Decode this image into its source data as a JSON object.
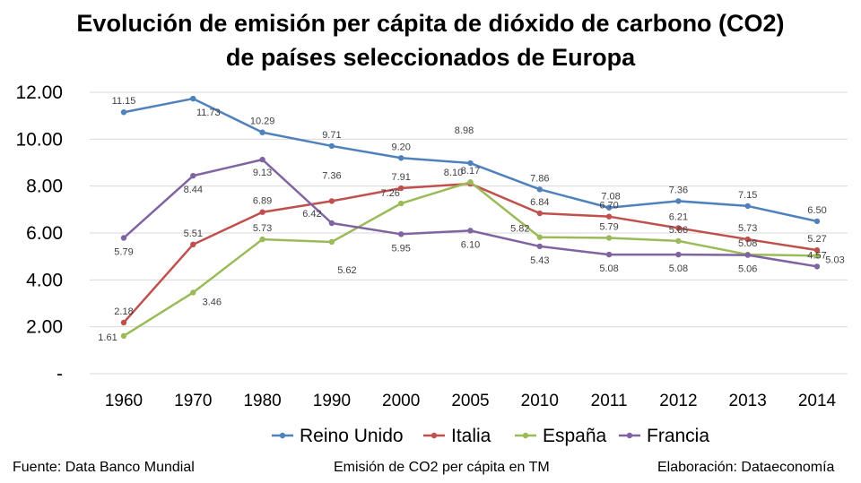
{
  "title_line1": "Evolución de emisión per cápita de dióxido de carbono (CO2)",
  "title_line2": "de países seleccionados de Europa",
  "footer": {
    "source": "Fuente: Data Banco Mundial",
    "unit": "Emisión de CO2 per cápita en TM",
    "credit": "Elaboración: Dataeconomía"
  },
  "chart_data": {
    "type": "line",
    "categories": [
      "1960",
      "1970",
      "1980",
      "1990",
      "2000",
      "2005",
      "2010",
      "2011",
      "2012",
      "2013",
      "2014"
    ],
    "ylim": [
      0,
      12
    ],
    "yticks": [
      "-",
      "2.00",
      "4.00",
      "6.00",
      "8.00",
      "10.00",
      "12.00"
    ],
    "grid": true,
    "legend_position": "bottom",
    "series": [
      {
        "name": "Reino Unido",
        "color": "#4f81bd",
        "values": [
          11.15,
          11.73,
          10.29,
          9.71,
          9.2,
          8.98,
          7.86,
          7.08,
          7.36,
          7.15,
          6.5
        ],
        "labels": [
          "11.15",
          "11.73",
          "10.29",
          "9.71",
          "9.20",
          "8.98",
          "7.86",
          "7.08",
          "7.36",
          "7.15",
          "6.50"
        ]
      },
      {
        "name": "Italia",
        "color": "#c0504d",
        "values": [
          2.18,
          5.51,
          6.89,
          7.36,
          7.91,
          8.1,
          6.84,
          6.7,
          6.21,
          5.73,
          5.27
        ],
        "labels": [
          "2.18",
          "5.51",
          "6.89",
          "7.36",
          "7.91",
          "8.10",
          "6.84",
          "6.70",
          "6.21",
          "5.73",
          "5.27"
        ]
      },
      {
        "name": "España",
        "color": "#9bbb59",
        "values": [
          1.61,
          3.46,
          5.73,
          5.62,
          7.26,
          8.17,
          5.82,
          5.79,
          5.66,
          5.08,
          5.03
        ],
        "labels": [
          "1.61",
          "3.46",
          "5.73",
          "5.62",
          "7.26",
          "8.17",
          "5.82",
          "5.79",
          "5.66",
          "5.08",
          "5.03"
        ]
      },
      {
        "name": "Francia",
        "color": "#8064a2",
        "values": [
          5.79,
          8.44,
          9.13,
          6.42,
          5.95,
          6.1,
          5.43,
          5.08,
          5.08,
          5.06,
          4.57
        ],
        "labels": [
          "5.79",
          "8.44",
          "9.13",
          "6.42",
          "5.95",
          "6.10",
          "5.43",
          "5.08",
          "5.08",
          "5.06",
          "4.57"
        ]
      }
    ]
  }
}
